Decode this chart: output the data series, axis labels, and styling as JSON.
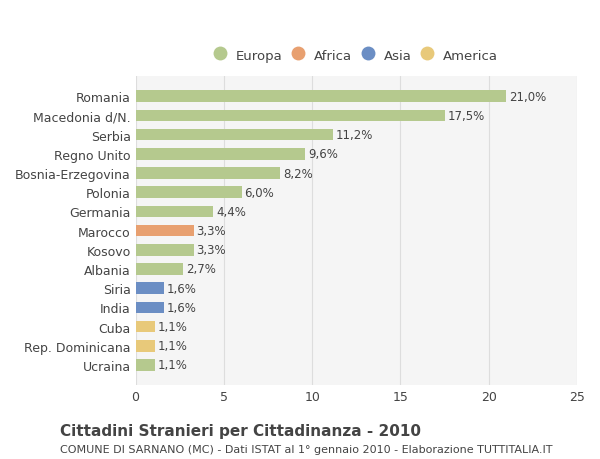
{
  "categories": [
    "Ucraina",
    "Rep. Dominicana",
    "Cuba",
    "India",
    "Siria",
    "Albania",
    "Kosovo",
    "Marocco",
    "Germania",
    "Polonia",
    "Bosnia-Erzegovina",
    "Regno Unito",
    "Serbia",
    "Macedonia d/N.",
    "Romania"
  ],
  "values": [
    1.1,
    1.1,
    1.1,
    1.6,
    1.6,
    2.7,
    3.3,
    3.3,
    4.4,
    6.0,
    8.2,
    9.6,
    11.2,
    17.5,
    21.0
  ],
  "labels": [
    "1,1%",
    "1,1%",
    "1,1%",
    "1,6%",
    "1,6%",
    "2,7%",
    "3,3%",
    "3,3%",
    "4,4%",
    "6,0%",
    "8,2%",
    "9,6%",
    "11,2%",
    "17,5%",
    "21,0%"
  ],
  "colors": [
    "#b5c98e",
    "#e8c97a",
    "#e8c97a",
    "#6b8ec4",
    "#6b8ec4",
    "#b5c98e",
    "#b5c98e",
    "#e8a070",
    "#b5c98e",
    "#b5c98e",
    "#b5c98e",
    "#b5c98e",
    "#b5c98e",
    "#b5c98e",
    "#b5c98e"
  ],
  "legend": [
    {
      "label": "Europa",
      "color": "#b5c98e"
    },
    {
      "label": "Africa",
      "color": "#e8a070"
    },
    {
      "label": "Asia",
      "color": "#6b8ec4"
    },
    {
      "label": "America",
      "color": "#e8c97a"
    }
  ],
  "xlim": [
    0,
    25
  ],
  "xticks": [
    0,
    5,
    10,
    15,
    20,
    25
  ],
  "title": "Cittadini Stranieri per Cittadinanza - 2010",
  "subtitle": "COMUNE DI SARNANO (MC) - Dati ISTAT al 1° gennaio 2010 - Elaborazione TUTTITALIA.IT",
  "bg_color": "#ffffff",
  "bar_bg_color": "#f5f5f5",
  "grid_color": "#dddddd",
  "text_color": "#444444",
  "label_fontsize": 8.5,
  "tick_fontsize": 9,
  "title_fontsize": 11,
  "subtitle_fontsize": 8
}
